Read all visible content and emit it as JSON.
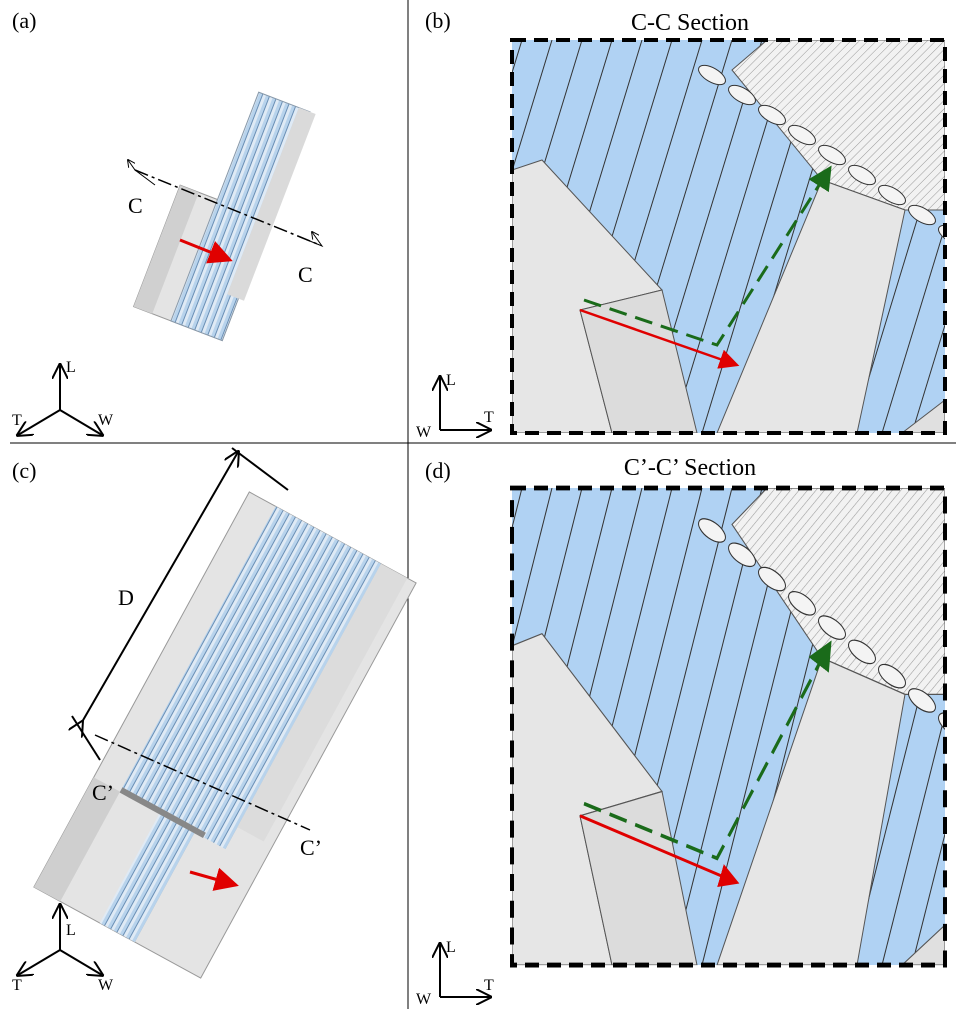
{
  "panels": [
    {
      "label": "(a)",
      "cut_labels": [
        "C",
        "C"
      ],
      "axes": [
        "L",
        "T",
        "W"
      ]
    },
    {
      "label": "(b)",
      "title": "C-C Section",
      "axes": [
        "L",
        "W",
        "T"
      ]
    },
    {
      "label": "(c)",
      "dimension": "D",
      "cut_labels": [
        "C’",
        "C’"
      ],
      "axes": [
        "L",
        "T",
        "W"
      ]
    },
    {
      "label": "(d)",
      "title": "C’-C’ Section",
      "axes": [
        "L",
        "W",
        "T"
      ]
    }
  ]
}
